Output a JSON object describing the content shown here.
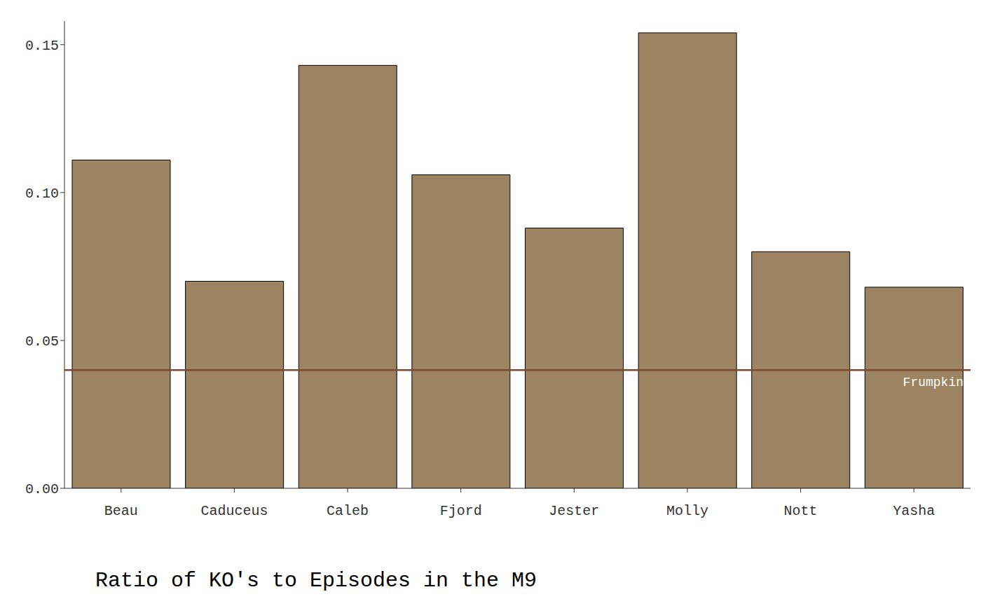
{
  "chart_data": {
    "type": "bar",
    "title": "Ratio of KO's to Episodes in the M9",
    "categories": [
      "Beau",
      "Caduceus",
      "Caleb",
      "Fjord",
      "Jester",
      "Molly",
      "Nott",
      "Yasha"
    ],
    "values": [
      0.111,
      0.07,
      0.143,
      0.106,
      0.088,
      0.154,
      0.08,
      0.068
    ],
    "color": "#9c8462",
    "ylim": [
      0,
      0.158
    ],
    "yticks": [
      {
        "value": 0,
        "label": "0.00"
      },
      {
        "value": 0.05,
        "label": "0.05"
      },
      {
        "value": 0.1,
        "label": "0.10"
      },
      {
        "value": 0.15,
        "label": "0.15"
      }
    ],
    "grid": false,
    "annotations": [
      {
        "type": "hline",
        "y": 0.04,
        "label": "Frumpkin",
        "color": "#7b4a2e"
      }
    ]
  }
}
